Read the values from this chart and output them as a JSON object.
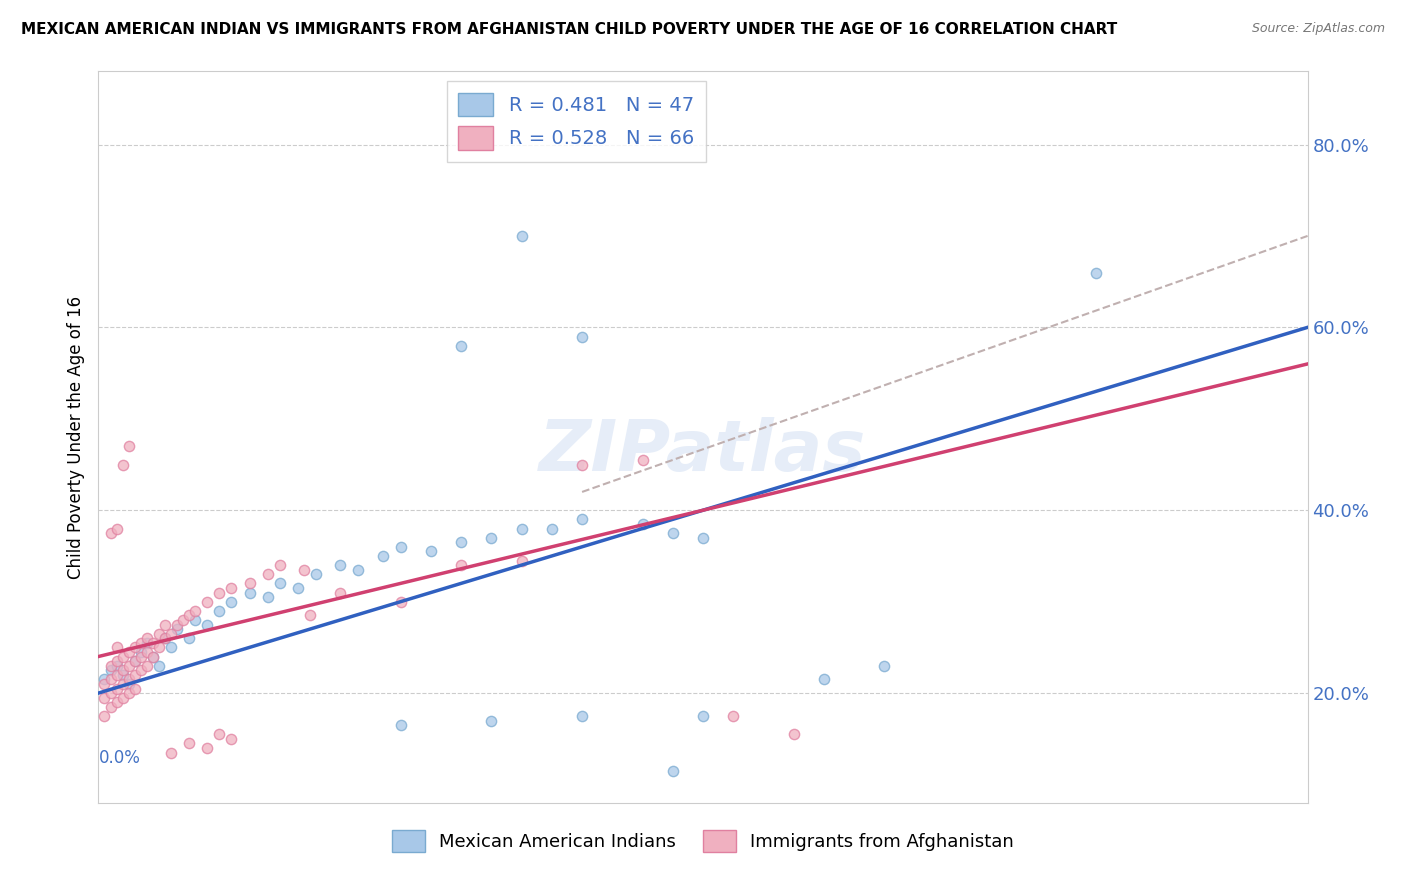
{
  "title": "MEXICAN AMERICAN INDIAN VS IMMIGRANTS FROM AFGHANISTAN CHILD POVERTY UNDER THE AGE OF 16 CORRELATION CHART",
  "source": "Source: ZipAtlas.com",
  "ylabel": "Child Poverty Under the Age of 16",
  "xlim": [
    0.0,
    0.2
  ],
  "ylim": [
    0.08,
    0.88
  ],
  "yticks": [
    0.2,
    0.4,
    0.6,
    0.8
  ],
  "ytick_labels": [
    "20.0%",
    "40.0%",
    "60.0%",
    "80.0%"
  ],
  "legend_blue_label": "R = 0.481   N = 47",
  "legend_pink_label": "R = 0.528   N = 66",
  "legend_bottom_blue": "Mexican American Indians",
  "legend_bottom_pink": "Immigrants from Afghanistan",
  "blue_color": "#A8C8E8",
  "blue_edge": "#7AAAD0",
  "pink_color": "#F0B0C0",
  "pink_edge": "#E080A0",
  "blue_line_color": "#3060C0",
  "pink_line_color": "#D04070",
  "dashed_color": "#C0B0B0",
  "watermark": "ZIPatlas",
  "blue_line": {
    "x": [
      0.0,
      0.2
    ],
    "y": [
      0.2,
      0.6
    ]
  },
  "pink_line": {
    "x": [
      0.0,
      0.2
    ],
    "y": [
      0.24,
      0.56
    ]
  },
  "dashed_line": {
    "x": [
      0.08,
      0.2
    ],
    "y": [
      0.42,
      0.7
    ]
  },
  "blue_scatter": [
    [
      0.001,
      0.215
    ],
    [
      0.002,
      0.225
    ],
    [
      0.003,
      0.23
    ],
    [
      0.004,
      0.22
    ],
    [
      0.005,
      0.21
    ],
    [
      0.006,
      0.235
    ],
    [
      0.007,
      0.245
    ],
    [
      0.008,
      0.255
    ],
    [
      0.009,
      0.24
    ],
    [
      0.01,
      0.23
    ],
    [
      0.011,
      0.26
    ],
    [
      0.012,
      0.25
    ],
    [
      0.013,
      0.27
    ],
    [
      0.015,
      0.26
    ],
    [
      0.016,
      0.28
    ],
    [
      0.018,
      0.275
    ],
    [
      0.02,
      0.29
    ],
    [
      0.022,
      0.3
    ],
    [
      0.025,
      0.31
    ],
    [
      0.028,
      0.305
    ],
    [
      0.03,
      0.32
    ],
    [
      0.033,
      0.315
    ],
    [
      0.036,
      0.33
    ],
    [
      0.04,
      0.34
    ],
    [
      0.043,
      0.335
    ],
    [
      0.047,
      0.35
    ],
    [
      0.05,
      0.36
    ],
    [
      0.055,
      0.355
    ],
    [
      0.06,
      0.365
    ],
    [
      0.065,
      0.37
    ],
    [
      0.07,
      0.38
    ],
    [
      0.075,
      0.38
    ],
    [
      0.08,
      0.39
    ],
    [
      0.09,
      0.385
    ],
    [
      0.095,
      0.375
    ],
    [
      0.1,
      0.37
    ],
    [
      0.05,
      0.165
    ],
    [
      0.065,
      0.17
    ],
    [
      0.08,
      0.175
    ],
    [
      0.1,
      0.175
    ],
    [
      0.12,
      0.215
    ],
    [
      0.13,
      0.23
    ],
    [
      0.06,
      0.58
    ],
    [
      0.07,
      0.7
    ],
    [
      0.08,
      0.59
    ],
    [
      0.165,
      0.66
    ],
    [
      0.095,
      0.115
    ]
  ],
  "pink_scatter": [
    [
      0.001,
      0.175
    ],
    [
      0.001,
      0.195
    ],
    [
      0.001,
      0.21
    ],
    [
      0.002,
      0.185
    ],
    [
      0.002,
      0.2
    ],
    [
      0.002,
      0.215
    ],
    [
      0.002,
      0.23
    ],
    [
      0.003,
      0.19
    ],
    [
      0.003,
      0.205
    ],
    [
      0.003,
      0.22
    ],
    [
      0.003,
      0.235
    ],
    [
      0.003,
      0.25
    ],
    [
      0.004,
      0.195
    ],
    [
      0.004,
      0.21
    ],
    [
      0.004,
      0.225
    ],
    [
      0.004,
      0.24
    ],
    [
      0.005,
      0.2
    ],
    [
      0.005,
      0.215
    ],
    [
      0.005,
      0.23
    ],
    [
      0.005,
      0.245
    ],
    [
      0.006,
      0.205
    ],
    [
      0.006,
      0.22
    ],
    [
      0.006,
      0.235
    ],
    [
      0.006,
      0.25
    ],
    [
      0.007,
      0.225
    ],
    [
      0.007,
      0.24
    ],
    [
      0.007,
      0.255
    ],
    [
      0.008,
      0.23
    ],
    [
      0.008,
      0.245
    ],
    [
      0.008,
      0.26
    ],
    [
      0.009,
      0.24
    ],
    [
      0.009,
      0.255
    ],
    [
      0.01,
      0.25
    ],
    [
      0.01,
      0.265
    ],
    [
      0.011,
      0.26
    ],
    [
      0.011,
      0.275
    ],
    [
      0.012,
      0.265
    ],
    [
      0.013,
      0.275
    ],
    [
      0.014,
      0.28
    ],
    [
      0.015,
      0.285
    ],
    [
      0.016,
      0.29
    ],
    [
      0.018,
      0.3
    ],
    [
      0.02,
      0.31
    ],
    [
      0.022,
      0.315
    ],
    [
      0.025,
      0.32
    ],
    [
      0.028,
      0.33
    ],
    [
      0.03,
      0.34
    ],
    [
      0.034,
      0.335
    ],
    [
      0.004,
      0.45
    ],
    [
      0.005,
      0.47
    ],
    [
      0.002,
      0.375
    ],
    [
      0.003,
      0.38
    ],
    [
      0.012,
      0.135
    ],
    [
      0.015,
      0.145
    ],
    [
      0.018,
      0.14
    ],
    [
      0.02,
      0.155
    ],
    [
      0.022,
      0.15
    ],
    [
      0.035,
      0.285
    ],
    [
      0.04,
      0.31
    ],
    [
      0.05,
      0.3
    ],
    [
      0.06,
      0.34
    ],
    [
      0.07,
      0.345
    ],
    [
      0.08,
      0.45
    ],
    [
      0.09,
      0.455
    ],
    [
      0.115,
      0.155
    ],
    [
      0.105,
      0.175
    ]
  ]
}
